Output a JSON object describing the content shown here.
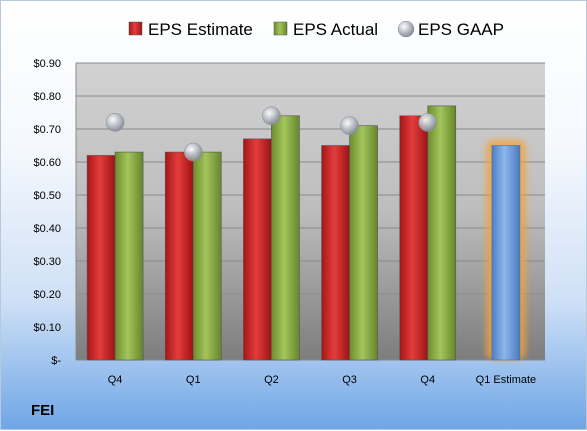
{
  "ticker": "FEI",
  "chart_data": {
    "type": "bar",
    "categories": [
      "Q4",
      "Q1",
      "Q2",
      "Q3",
      "Q4",
      "Q1 Estimate"
    ],
    "series": [
      {
        "name": "EPS Estimate",
        "values": [
          0.62,
          0.63,
          0.67,
          0.65,
          0.74,
          null
        ],
        "color": "#d32a2a"
      },
      {
        "name": "EPS Actual",
        "values": [
          0.63,
          0.63,
          0.74,
          0.71,
          0.77,
          null
        ],
        "color": "#8fb24a"
      },
      {
        "name": "EPS GAAP",
        "values": [
          0.72,
          0.63,
          0.74,
          0.71,
          0.72,
          null
        ],
        "color": "#b9bec6"
      }
    ],
    "forecast": {
      "category": "Q1 Estimate",
      "value": 0.65,
      "color": "#6a9ad8",
      "glow": "#f6a23a"
    },
    "ylim": [
      0,
      0.9
    ],
    "yticks": [
      0,
      0.1,
      0.2,
      0.3,
      0.4,
      0.5,
      0.6,
      0.7,
      0.8,
      0.9
    ],
    "ytick_labels": [
      "$-",
      "$0.10",
      "$0.20",
      "$0.30",
      "$0.40",
      "$0.50",
      "$0.60",
      "$0.70",
      "$0.80",
      "$0.90"
    ],
    "grid": true,
    "legend": "top"
  }
}
